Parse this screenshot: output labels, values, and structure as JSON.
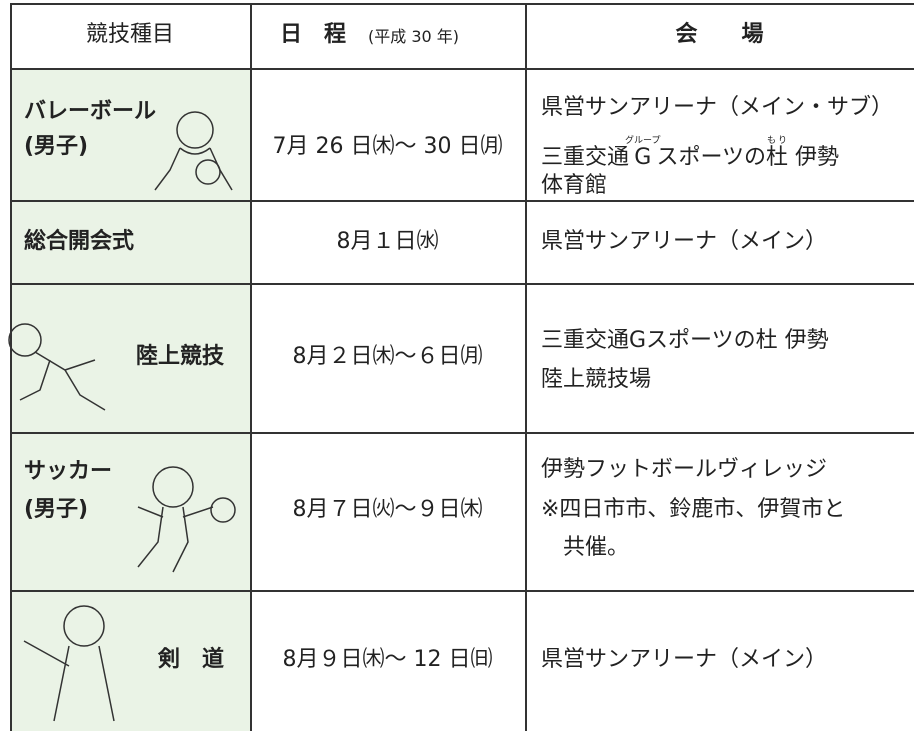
{
  "table": {
    "header": {
      "event": "競技種目",
      "date": "日　程",
      "year": "(平成 30 年)",
      "venue": "会　　場"
    },
    "rows": [
      {
        "event": [
          "バレーボール",
          "(男子)"
        ],
        "date": "7月 26 日㈭〜 30 日㈪",
        "venue": [
          "県営サンアリーナ（メイン・サブ）",
          "体育館"
        ],
        "venue_ruby_line": [
          "三重交通",
          {
            "base": "G",
            "ruby": "グループ"
          },
          "スポーツの",
          {
            "base": "杜",
            "ruby": "もり"
          },
          " 伊勢"
        ]
      },
      {
        "event": [
          "総合開会式"
        ],
        "date": "8月１日㈬",
        "venue": [
          "県営サンアリーナ（メイン）"
        ]
      },
      {
        "event": [
          "陸上競技"
        ],
        "date": "8月２日㈭〜６日㈪",
        "venue": [
          "三重交通Gスポーツの杜 伊勢",
          "陸上競技場"
        ]
      },
      {
        "event": [
          "サッカー",
          "(男子)"
        ],
        "date": "8月７日㈫〜９日㈭",
        "venue": [
          "伊勢フットボールヴィレッジ",
          "※四日市市、鈴鹿市、伊賀市と",
          "共催。"
        ]
      },
      {
        "event": [
          "剣　道"
        ],
        "date": "8月９日㈭〜 12 日㈰",
        "venue": [
          "県営サンアリーナ（メイン）"
        ]
      }
    ]
  }
}
